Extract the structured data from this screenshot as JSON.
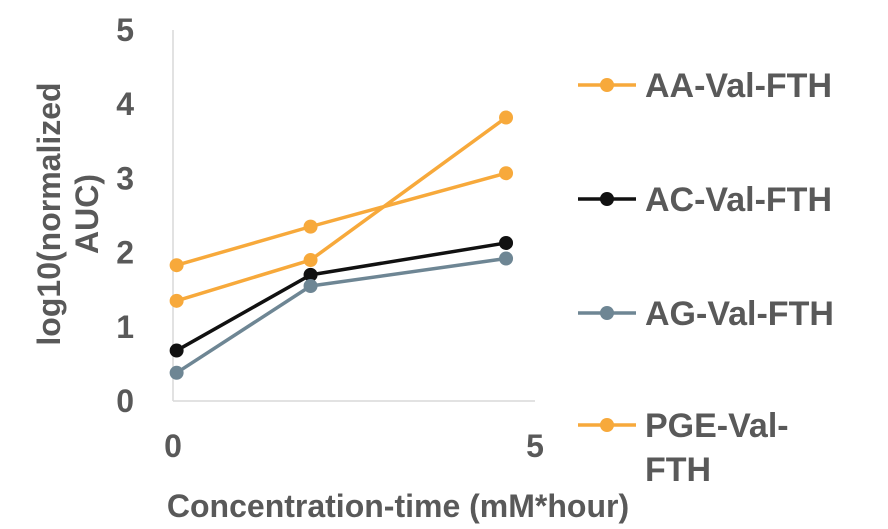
{
  "chart_data": {
    "type": "line",
    "xlabel": "Concentration-time (mM*hour)",
    "ylabel_lines": [
      "log10(normalized",
      "AUC)"
    ],
    "xlim": [
      0,
      5
    ],
    "ylim": [
      0,
      5
    ],
    "x_ticks": [
      "0",
      "5"
    ],
    "y_ticks": [
      "0",
      "1",
      "2",
      "3",
      "4",
      "5"
    ],
    "grid": false,
    "legend_position": "right",
    "series": [
      {
        "name": "AA-Val-FTH",
        "color": "#F7A93B",
        "x": [
          0.05,
          1.9,
          4.6
        ],
        "y": [
          1.35,
          1.9,
          3.82
        ]
      },
      {
        "name": "AC-Val-FTH",
        "color": "#111111",
        "x": [
          0.05,
          1.9,
          4.6
        ],
        "y": [
          0.68,
          1.7,
          2.13
        ]
      },
      {
        "name": "AG-Val-FTH",
        "color": "#6E8694",
        "x": [
          0.05,
          1.9,
          4.6
        ],
        "y": [
          0.38,
          1.55,
          1.92
        ]
      },
      {
        "name": "PGE-Val-FTH",
        "name_lines": [
          "PGE-Val-",
          "FTH"
        ],
        "color": "#F7A93B",
        "x": [
          0.05,
          1.9,
          4.6
        ],
        "y": [
          1.83,
          2.35,
          3.07
        ]
      }
    ]
  }
}
